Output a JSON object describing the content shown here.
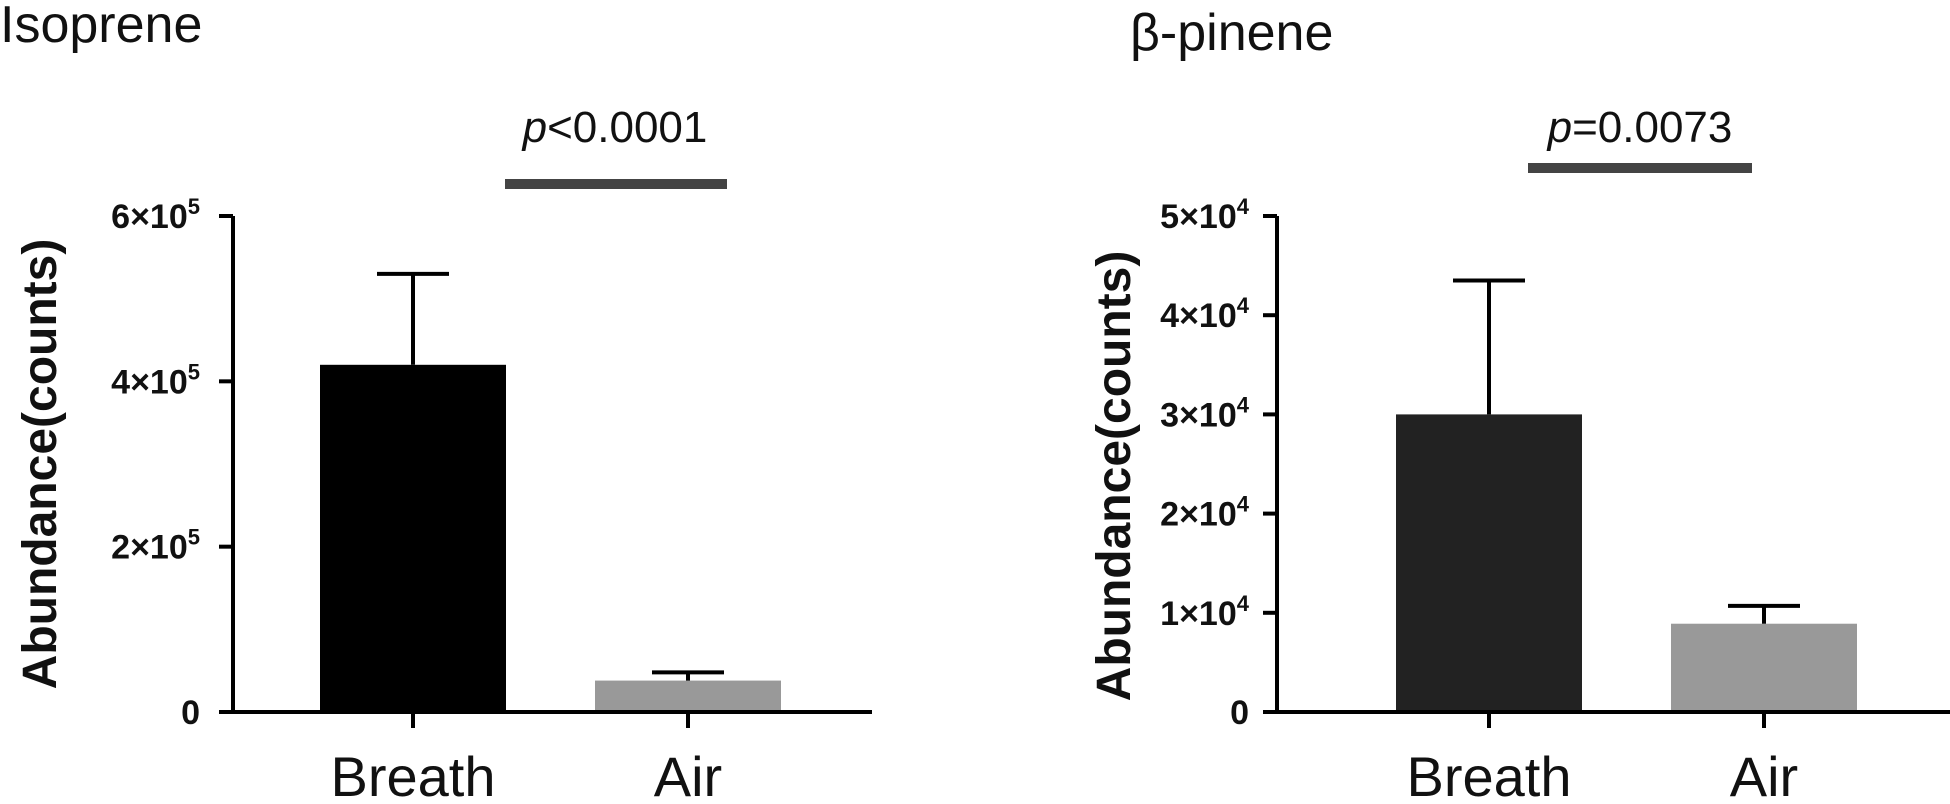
{
  "chart_data": [
    {
      "type": "bar",
      "title": "Isoprene",
      "ylabel": "Abundance(counts)",
      "categories": [
        "Breath",
        "Air"
      ],
      "values": [
        420000,
        38000
      ],
      "errors": [
        110000,
        10000
      ],
      "colors": [
        "#000000",
        "#999999"
      ],
      "ylim": [
        0,
        600000
      ],
      "yticks": [
        {
          "value": 0,
          "base": "0",
          "exp": ""
        },
        {
          "value": 200000,
          "base": "2×10",
          "exp": "5"
        },
        {
          "value": 400000,
          "base": "4×10",
          "exp": "5"
        },
        {
          "value": 600000,
          "base": "6×10",
          "exp": "5"
        }
      ],
      "significance": {
        "italic": "p",
        "text": "<0.0001"
      }
    },
    {
      "type": "bar",
      "title": "β-pinene",
      "ylabel": "Abundance(counts)",
      "categories": [
        "Breath",
        "Air"
      ],
      "values": [
        30000,
        8900
      ],
      "errors": [
        13500,
        1800
      ],
      "colors": [
        "#222222",
        "#999999"
      ],
      "ylim": [
        0,
        50000
      ],
      "yticks": [
        {
          "value": 0,
          "base": "0",
          "exp": ""
        },
        {
          "value": 10000,
          "base": "1×10",
          "exp": "4"
        },
        {
          "value": 20000,
          "base": "2×10",
          "exp": "4"
        },
        {
          "value": 30000,
          "base": "3×10",
          "exp": "4"
        },
        {
          "value": 40000,
          "base": "4×10",
          "exp": "4"
        },
        {
          "value": 50000,
          "base": "5×10",
          "exp": "4"
        }
      ],
      "significance": {
        "italic": "p",
        "text": "=0.0073"
      }
    }
  ]
}
